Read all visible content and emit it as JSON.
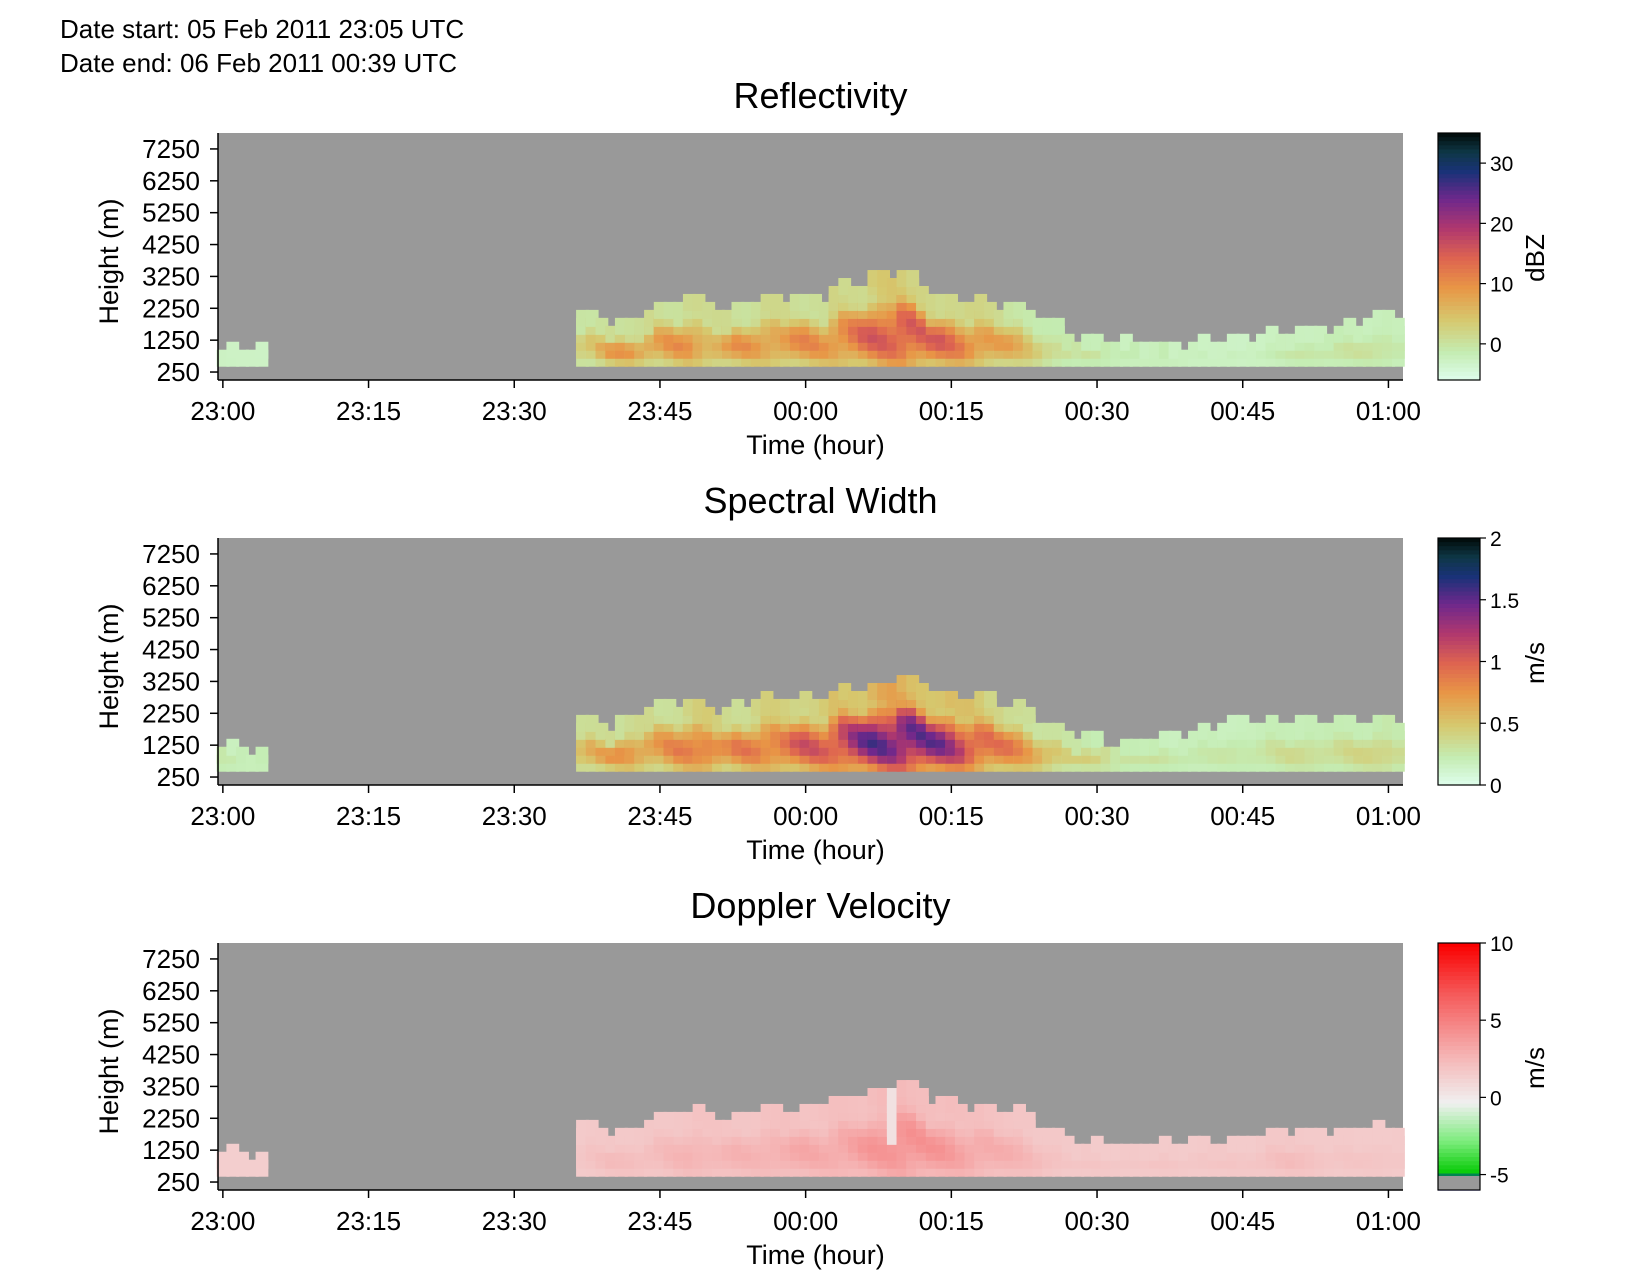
{
  "header": {
    "date_start": "Date start: 05 Feb 2011 23:05 UTC",
    "date_end": "Date end:  06 Feb 2011 00:39 UTC"
  },
  "colors": {
    "background_gray": "#999999",
    "axis": "#000000"
  },
  "chart_data": [
    {
      "type": "heatmap",
      "title": "Reflectivity",
      "xlabel": "Time (hour)",
      "ylabel": "Height (m)",
      "x_ticks": [
        "23:00",
        "23:15",
        "23:30",
        "23:45",
        "00:00",
        "00:15",
        "00:30",
        "00:45",
        "01:00"
      ],
      "y_ticks": [
        7250,
        6250,
        5250,
        4250,
        3250,
        2250,
        1250,
        250
      ],
      "xlim": [
        "22:59.5",
        "01:01.5"
      ],
      "ylim": [
        0,
        7750
      ],
      "colorbar": {
        "label": "dBZ",
        "ticks": [
          30,
          20,
          10,
          0
        ],
        "range": [
          -6,
          35
        ],
        "colormap": "cubehelix-reversed"
      },
      "swath": {
        "time_minutes_from_2300": [
          1,
          4,
          38,
          40,
          42,
          45,
          48,
          50,
          52,
          55,
          58,
          62,
          65,
          68,
          70,
          73,
          76,
          79,
          82,
          85,
          88,
          92,
          98,
          105,
          110,
          115,
          120,
          122
        ],
        "top_m": [
          900,
          900,
          2000,
          1800,
          1600,
          2300,
          2500,
          2300,
          1900,
          2500,
          2500,
          2500,
          3000,
          3200,
          3400,
          2600,
          2500,
          2300,
          2300,
          1800,
          1300,
          1200,
          1000,
          1200,
          1400,
          1600,
          2000,
          1800
        ],
        "peak_dBZ": [
          -2,
          -2,
          6,
          10,
          12,
          10,
          12,
          10,
          11,
          11,
          12,
          12,
          15,
          18,
          20,
          17,
          15,
          12,
          8,
          4,
          1,
          0,
          -1,
          -2,
          0,
          1,
          1,
          0
        ]
      }
    },
    {
      "type": "heatmap",
      "title": "Spectral Width",
      "xlabel": "Time (hour)",
      "ylabel": "Height (m)",
      "x_ticks": [
        "23:00",
        "23:15",
        "23:30",
        "23:45",
        "00:00",
        "00:15",
        "00:30",
        "00:45",
        "01:00"
      ],
      "y_ticks": [
        7250,
        6250,
        5250,
        4250,
        3250,
        2250,
        1250,
        250
      ],
      "xlim": [
        "22:59.5",
        "01:01.5"
      ],
      "ylim": [
        0,
        7750
      ],
      "colorbar": {
        "label": "m/s",
        "ticks": [
          2,
          1.5,
          1,
          0.5,
          0
        ],
        "range": [
          0,
          2
        ],
        "colormap": "cubehelix-reversed"
      },
      "swath": {
        "time_minutes_from_2300": [
          1,
          4,
          37,
          40,
          42,
          45,
          48,
          50,
          52,
          55,
          58,
          62,
          65,
          68,
          70,
          73,
          76,
          79,
          82,
          85,
          88,
          92,
          98,
          105,
          110,
          115,
          120,
          122
        ],
        "top_m": [
          1200,
          1000,
          2000,
          1800,
          2000,
          2500,
          2600,
          2400,
          2200,
          2600,
          2600,
          2700,
          3000,
          3100,
          3300,
          2900,
          2700,
          2600,
          2400,
          1900,
          1500,
          1200,
          1500,
          2000,
          1900,
          2000,
          2000,
          1900
        ],
        "peak_width": [
          0.3,
          0.3,
          0.7,
          0.8,
          0.9,
          0.8,
          1.0,
          1.1,
          0.9,
          1.0,
          1.1,
          1.2,
          1.5,
          1.7,
          1.8,
          1.6,
          1.4,
          1.1,
          0.9,
          0.7,
          0.5,
          0.4,
          0.3,
          0.3,
          0.4,
          0.4,
          0.5,
          0.4
        ]
      }
    },
    {
      "type": "heatmap",
      "title": "Doppler Velocity",
      "xlabel": "Time (hour)",
      "ylabel": "Height (m)",
      "x_ticks": [
        "23:00",
        "23:15",
        "23:30",
        "23:45",
        "00:00",
        "00:15",
        "00:30",
        "00:45",
        "01:00"
      ],
      "y_ticks": [
        7250,
        6250,
        5250,
        4250,
        3250,
        2250,
        1250,
        250
      ],
      "xlim": [
        "22:59.5",
        "01:01.5"
      ],
      "ylim": [
        0,
        7750
      ],
      "colorbar": {
        "label": "m/s",
        "ticks": [
          10,
          5,
          0,
          -5
        ],
        "range": [
          -6,
          10
        ],
        "colormap": "blue-green-white-red"
      },
      "swath": {
        "time_minutes_from_2300": [
          1,
          4,
          37,
          40,
          42,
          45,
          48,
          50,
          52,
          55,
          58,
          62,
          65,
          68,
          70,
          73,
          76,
          79,
          82,
          85,
          88,
          92,
          98,
          105,
          110,
          115,
          120,
          122
        ],
        "top_m": [
          1100,
          1000,
          2000,
          1800,
          1700,
          2300,
          2400,
          2300,
          2100,
          2500,
          2400,
          2600,
          2800,
          3000,
          3400,
          2800,
          2600,
          2500,
          2400,
          1800,
          1400,
          1300,
          1400,
          1600,
          1800,
          1800,
          1900,
          1800
        ],
        "peak_velocity": [
          1.5,
          1.5,
          2,
          2.5,
          2.5,
          2.5,
          3,
          3,
          3,
          3,
          3.5,
          3.5,
          4,
          4.5,
          5,
          4.5,
          4,
          3.5,
          3,
          2.5,
          2,
          2,
          2,
          2,
          2.5,
          2,
          2,
          2
        ]
      }
    }
  ]
}
